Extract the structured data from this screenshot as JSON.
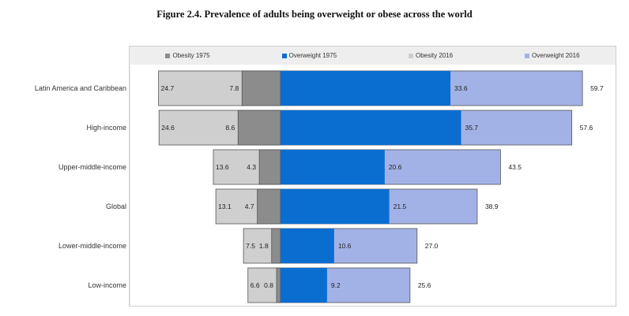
{
  "figure_title": "Figure 2.4. Prevalence of adults being overweight or obese across the world",
  "colors": {
    "obesity_1975": "#8c8c8c",
    "overweight_1975": "#0a6ed1",
    "obesity_2016": "#cfcfcf",
    "overweight_2016": "#a3b2e6",
    "bar_border": "#555555"
  },
  "chart_data": {
    "type": "bar",
    "orientation": "horizontal-diverging",
    "title": "Figure 2.4. Prevalence of adults being overweight or obese across the world",
    "legend_position": "top",
    "categories": [
      "Latin America and Caribbean",
      "High-income",
      "Upper-middle-income",
      "Global",
      "Lower-middle-income",
      "Low-income"
    ],
    "series": [
      {
        "name": "Obesity 1975",
        "side": "left",
        "values": [
          7.8,
          8.6,
          4.3,
          4.7,
          1.8,
          0.8
        ],
        "labels": [
          "7.8",
          "8.6",
          "4.3",
          "4.7",
          "1.8",
          "0.8"
        ]
      },
      {
        "name": "Overweight 1975",
        "side": "right",
        "values": [
          33.6,
          35.7,
          20.6,
          21.5,
          10.6,
          9.2
        ],
        "labels": [
          "33.6",
          "35.7",
          "20.6",
          "21.5",
          "10.6",
          "9.2"
        ]
      },
      {
        "name": "Obesity 2016",
        "side": "left",
        "values": [
          24.7,
          24.6,
          13.6,
          13.1,
          7.5,
          6.6
        ],
        "labels": [
          "24.7",
          "24.6",
          "13.6",
          "13.1",
          "7.5",
          "6.6"
        ]
      },
      {
        "name": "Overweight 2016",
        "side": "right",
        "values": [
          59.7,
          57.6,
          43.5,
          38.9,
          27.0,
          25.6
        ],
        "labels": [
          "59.7",
          "57.6",
          "43.5",
          "38.9",
          "27.0",
          "25.6"
        ]
      }
    ]
  }
}
